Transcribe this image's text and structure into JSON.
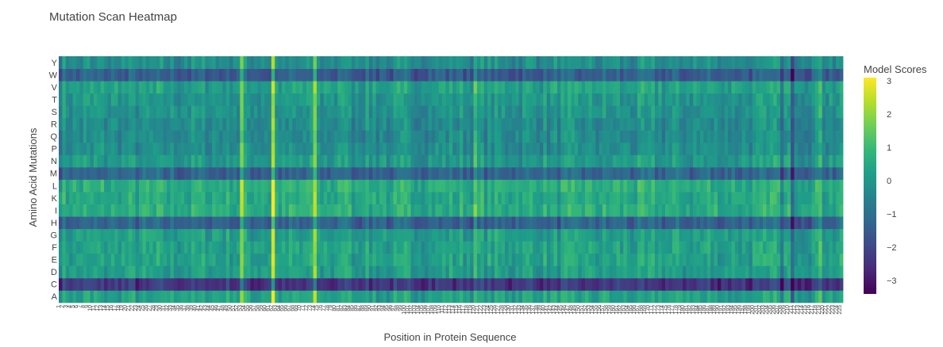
{
  "chart_data": {
    "type": "heatmap",
    "title": "Mutation Scan Heatmap",
    "xlabel": "Position in Protein Sequence",
    "ylabel": "Amino Acid Mutations",
    "y_categories": [
      "A",
      "C",
      "D",
      "E",
      "F",
      "G",
      "H",
      "I",
      "K",
      "L",
      "M",
      "N",
      "P",
      "Q",
      "R",
      "S",
      "T",
      "V",
      "W",
      "Y"
    ],
    "x_start": 1,
    "x_count": 225,
    "colorbar": {
      "title": "Model Scores",
      "range": [
        -3.4,
        3.1
      ],
      "ticks": [
        "3",
        "2",
        "1",
        "0",
        "−1",
        "−2",
        "−3"
      ],
      "tick_values": [
        3,
        2,
        1,
        0,
        -1,
        -2,
        -3
      ]
    },
    "colorscale": "Viridis",
    "colors": [
      "#440154",
      "#482878",
      "#3e4989",
      "#31688e",
      "#26828e",
      "#1f9e89",
      "#35b779",
      "#6ece58",
      "#b5de2b",
      "#fde725"
    ],
    "row_means": {
      "A": 0.3,
      "C": -2.4,
      "D": 0.2,
      "E": 0.3,
      "F": 0.3,
      "G": 0.2,
      "H": -1.4,
      "I": 0.6,
      "K": 0.5,
      "L": 0.6,
      "M": -1.3,
      "N": 0.1,
      "P": -0.2,
      "Q": -0.3,
      "R": -0.3,
      "S": -0.1,
      "T": 0.0,
      "V": 0.3,
      "W": -1.5,
      "Y": -0.2
    },
    "bright_columns": [
      {
        "x": 53,
        "delta": 1.6
      },
      {
        "x": 62,
        "delta": 2.3
      },
      {
        "x": 74,
        "delta": 2.0
      },
      {
        "x": 83,
        "delta": 0.8
      },
      {
        "x": 120,
        "delta": 0.7
      },
      {
        "x": 206,
        "delta": 1.0
      },
      {
        "x": 219,
        "delta": 1.2
      }
    ],
    "dark_columns": [
      {
        "x": 96,
        "delta": -0.7
      },
      {
        "x": 208,
        "delta": -1.0
      },
      {
        "x": 211,
        "delta": -1.2
      }
    ]
  }
}
